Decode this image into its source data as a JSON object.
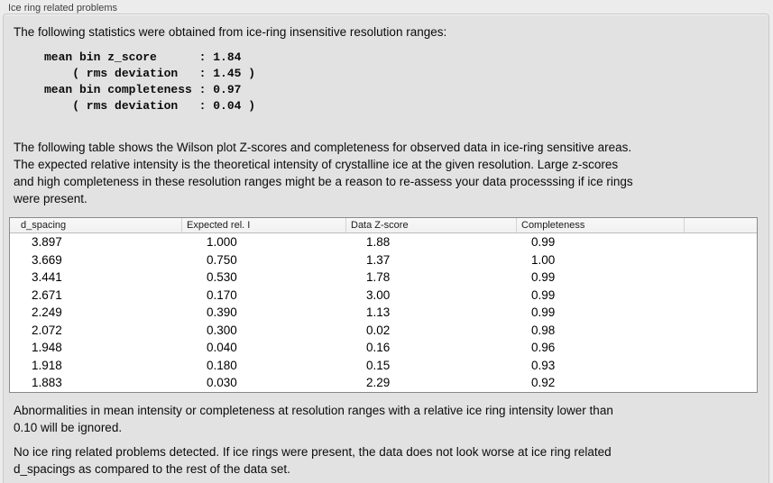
{
  "panel": {
    "title": "Ice ring related problems"
  },
  "intro_text": "The following statistics were obtained from ice-ring insensitive resolution ranges:",
  "stats": {
    "block": "mean bin z_score      : 1.84\n    ( rms deviation   : 1.45 )\nmean bin completeness : 0.97\n    ( rms deviation   : 0.04 )",
    "mean_bin_z_score": "1.84",
    "z_score_rms_deviation": "1.45",
    "mean_bin_completeness": "0.97",
    "completeness_rms_deviation": "0.04"
  },
  "table_description": "The following table shows the Wilson plot Z-scores and completeness for observed data in ice-ring sensitive areas.\nThe expected relative intensity is the theoretical intensity of crystalline ice at the given resolution. Large z-scores\nand high completeness in these resolution ranges might be a reason to re-assess your data processsing if ice rings\nwere present.",
  "table": {
    "columns": [
      "d_spacing",
      "Expected rel. I",
      "Data Z-score",
      "Completeness"
    ],
    "rows": [
      [
        "3.897",
        "1.000",
        "1.88",
        "0.99"
      ],
      [
        "3.669",
        "0.750",
        "1.37",
        "1.00"
      ],
      [
        "3.441",
        "0.530",
        "1.78",
        "0.99"
      ],
      [
        "2.671",
        "0.170",
        "3.00",
        "0.99"
      ],
      [
        "2.249",
        "0.390",
        "1.13",
        "0.99"
      ],
      [
        "2.072",
        "0.300",
        "0.02",
        "0.98"
      ],
      [
        "1.948",
        "0.040",
        "0.16",
        "0.96"
      ],
      [
        "1.918",
        "0.180",
        "0.15",
        "0.93"
      ],
      [
        "1.883",
        "0.030",
        "2.29",
        "0.92"
      ]
    ]
  },
  "ignore_note": "Abnormalities in mean intensity or completeness at resolution ranges with a relative ice ring intensity lower than\n0.10 will be ignored.",
  "conclusion": "No ice ring related problems detected. If ice rings were present, the data does not look worse at ice ring related\nd_spacings as compared to the rest of the data set."
}
